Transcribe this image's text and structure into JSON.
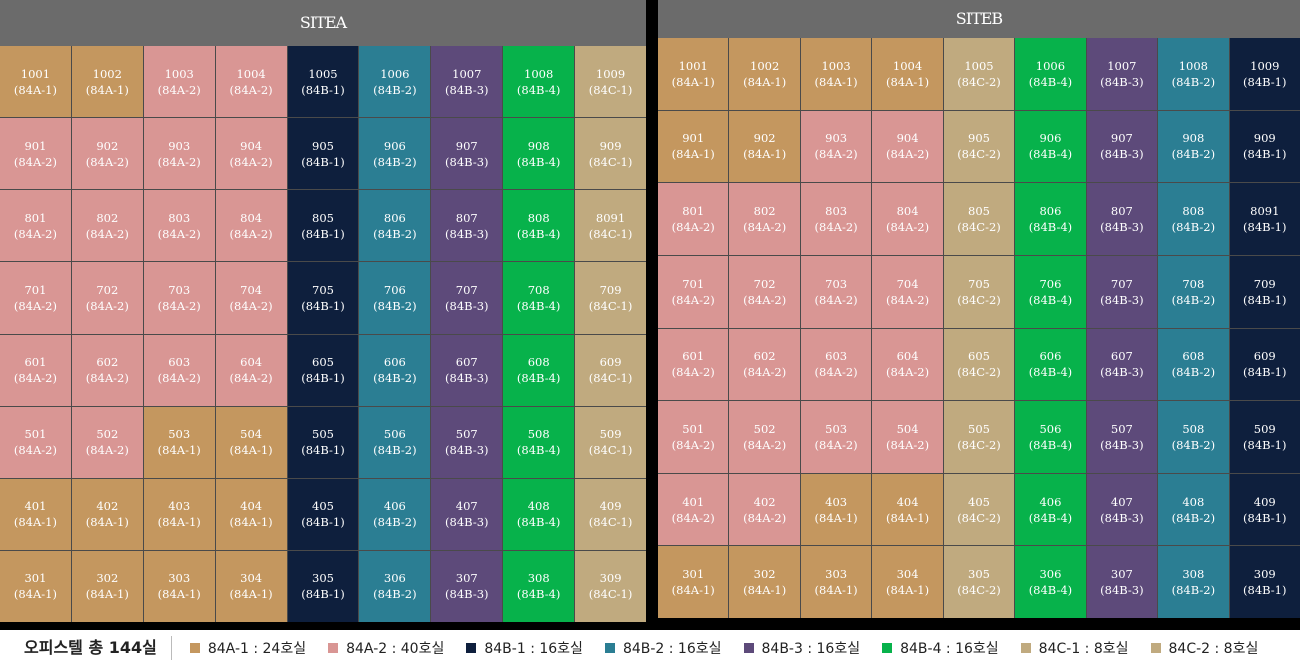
{
  "colors": {
    "84A-1": "#c4975f",
    "84A-2": "#d99694",
    "84B-1": "#0e1f3d",
    "84B-2": "#2b7e93",
    "84B-3": "#5d4a7a",
    "84B-4": "#07b24b",
    "84C-1": "#c0aa7f",
    "84C-2": "#c0aa7f"
  },
  "siteA": {
    "title": "SITEA",
    "rows": [
      [
        [
          "1001",
          "84A-1"
        ],
        [
          "1002",
          "84A-1"
        ],
        [
          "1003",
          "84A-2"
        ],
        [
          "1004",
          "84A-2"
        ],
        [
          "1005",
          "84B-1"
        ],
        [
          "1006",
          "84B-2"
        ],
        [
          "1007",
          "84B-3"
        ],
        [
          "1008",
          "84B-4"
        ],
        [
          "1009",
          "84C-1"
        ]
      ],
      [
        [
          "901",
          "84A-2"
        ],
        [
          "902",
          "84A-2"
        ],
        [
          "903",
          "84A-2"
        ],
        [
          "904",
          "84A-2"
        ],
        [
          "905",
          "84B-1"
        ],
        [
          "906",
          "84B-2"
        ],
        [
          "907",
          "84B-3"
        ],
        [
          "908",
          "84B-4"
        ],
        [
          "909",
          "84C-1"
        ]
      ],
      [
        [
          "801",
          "84A-2"
        ],
        [
          "802",
          "84A-2"
        ],
        [
          "803",
          "84A-2"
        ],
        [
          "804",
          "84A-2"
        ],
        [
          "805",
          "84B-1"
        ],
        [
          "806",
          "84B-2"
        ],
        [
          "807",
          "84B-3"
        ],
        [
          "808",
          "84B-4"
        ],
        [
          "8091",
          "84C-1"
        ]
      ],
      [
        [
          "701",
          "84A-2"
        ],
        [
          "702",
          "84A-2"
        ],
        [
          "703",
          "84A-2"
        ],
        [
          "704",
          "84A-2"
        ],
        [
          "705",
          "84B-1"
        ],
        [
          "706",
          "84B-2"
        ],
        [
          "707",
          "84B-3"
        ],
        [
          "708",
          "84B-4"
        ],
        [
          "709",
          "84C-1"
        ]
      ],
      [
        [
          "601",
          "84A-2"
        ],
        [
          "602",
          "84A-2"
        ],
        [
          "603",
          "84A-2"
        ],
        [
          "604",
          "84A-2"
        ],
        [
          "605",
          "84B-1"
        ],
        [
          "606",
          "84B-2"
        ],
        [
          "607",
          "84B-3"
        ],
        [
          "608",
          "84B-4"
        ],
        [
          "609",
          "84C-1"
        ]
      ],
      [
        [
          "501",
          "84A-2"
        ],
        [
          "502",
          "84A-2"
        ],
        [
          "503",
          "84A-1"
        ],
        [
          "504",
          "84A-1"
        ],
        [
          "505",
          "84B-1"
        ],
        [
          "506",
          "84B-2"
        ],
        [
          "507",
          "84B-3"
        ],
        [
          "508",
          "84B-4"
        ],
        [
          "509",
          "84C-1"
        ]
      ],
      [
        [
          "401",
          "84A-1"
        ],
        [
          "402",
          "84A-1"
        ],
        [
          "403",
          "84A-1"
        ],
        [
          "404",
          "84A-1"
        ],
        [
          "405",
          "84B-1"
        ],
        [
          "406",
          "84B-2"
        ],
        [
          "407",
          "84B-3"
        ],
        [
          "408",
          "84B-4"
        ],
        [
          "409",
          "84C-1"
        ]
      ],
      [
        [
          "301",
          "84A-1"
        ],
        [
          "302",
          "84A-1"
        ],
        [
          "303",
          "84A-1"
        ],
        [
          "304",
          "84A-1"
        ],
        [
          "305",
          "84B-1"
        ],
        [
          "306",
          "84B-2"
        ],
        [
          "307",
          "84B-3"
        ],
        [
          "308",
          "84B-4"
        ],
        [
          "309",
          "84C-1"
        ]
      ]
    ]
  },
  "siteB": {
    "title": "SITEB",
    "rows": [
      [
        [
          "1001",
          "84A-1"
        ],
        [
          "1002",
          "84A-1"
        ],
        [
          "1003",
          "84A-1"
        ],
        [
          "1004",
          "84A-1"
        ],
        [
          "1005",
          "84C-2"
        ],
        [
          "1006",
          "84B-4"
        ],
        [
          "1007",
          "84B-3"
        ],
        [
          "1008",
          "84B-2"
        ],
        [
          "1009",
          "84B-1"
        ]
      ],
      [
        [
          "901",
          "84A-1"
        ],
        [
          "902",
          "84A-1"
        ],
        [
          "903",
          "84A-2"
        ],
        [
          "904",
          "84A-2"
        ],
        [
          "905",
          "84C-2"
        ],
        [
          "906",
          "84B-4"
        ],
        [
          "907",
          "84B-3"
        ],
        [
          "908",
          "84B-2"
        ],
        [
          "909",
          "84B-1"
        ]
      ],
      [
        [
          "801",
          "84A-2"
        ],
        [
          "802",
          "84A-2"
        ],
        [
          "803",
          "84A-2"
        ],
        [
          "804",
          "84A-2"
        ],
        [
          "805",
          "84C-2"
        ],
        [
          "806",
          "84B-4"
        ],
        [
          "807",
          "84B-3"
        ],
        [
          "808",
          "84B-2"
        ],
        [
          "8091",
          "84B-1"
        ]
      ],
      [
        [
          "701",
          "84A-2"
        ],
        [
          "702",
          "84A-2"
        ],
        [
          "703",
          "84A-2"
        ],
        [
          "704",
          "84A-2"
        ],
        [
          "705",
          "84C-2"
        ],
        [
          "706",
          "84B-4"
        ],
        [
          "707",
          "84B-3"
        ],
        [
          "708",
          "84B-2"
        ],
        [
          "709",
          "84B-1"
        ]
      ],
      [
        [
          "601",
          "84A-2"
        ],
        [
          "602",
          "84A-2"
        ],
        [
          "603",
          "84A-2"
        ],
        [
          "604",
          "84A-2"
        ],
        [
          "605",
          "84C-2"
        ],
        [
          "606",
          "84B-4"
        ],
        [
          "607",
          "84B-3"
        ],
        [
          "608",
          "84B-2"
        ],
        [
          "609",
          "84B-1"
        ]
      ],
      [
        [
          "501",
          "84A-2"
        ],
        [
          "502",
          "84A-2"
        ],
        [
          "503",
          "84A-2"
        ],
        [
          "504",
          "84A-2"
        ],
        [
          "505",
          "84C-2"
        ],
        [
          "506",
          "84B-4"
        ],
        [
          "507",
          "84B-3"
        ],
        [
          "508",
          "84B-2"
        ],
        [
          "509",
          "84B-1"
        ]
      ],
      [
        [
          "401",
          "84A-2"
        ],
        [
          "402",
          "84A-2"
        ],
        [
          "403",
          "84A-1"
        ],
        [
          "404",
          "84A-1"
        ],
        [
          "405",
          "84C-2"
        ],
        [
          "406",
          "84B-4"
        ],
        [
          "407",
          "84B-3"
        ],
        [
          "408",
          "84B-2"
        ],
        [
          "409",
          "84B-1"
        ]
      ],
      [
        [
          "301",
          "84A-1"
        ],
        [
          "302",
          "84A-1"
        ],
        [
          "303",
          "84A-1"
        ],
        [
          "304",
          "84A-1"
        ],
        [
          "305",
          "84C-2"
        ],
        [
          "306",
          "84B-4"
        ],
        [
          "307",
          "84B-3"
        ],
        [
          "308",
          "84B-2"
        ],
        [
          "309",
          "84B-1"
        ]
      ]
    ]
  },
  "legend": {
    "title": "오피스텔 총 144실",
    "items": [
      {
        "type": "84A-1",
        "label": "84A-1 : 24호실"
      },
      {
        "type": "84A-2",
        "label": "84A-2 : 40호실"
      },
      {
        "type": "84B-1",
        "label": "84B-1 : 16호실"
      },
      {
        "type": "84B-2",
        "label": "84B-2 : 16호실"
      },
      {
        "type": "84B-3",
        "label": "84B-3 : 16호실"
      },
      {
        "type": "84B-4",
        "label": "84B-4 : 16호실"
      },
      {
        "type": "84C-1",
        "label": "84C-1 : 8호실"
      },
      {
        "type": "84C-2",
        "label": "84C-2 : 8호실"
      }
    ]
  }
}
